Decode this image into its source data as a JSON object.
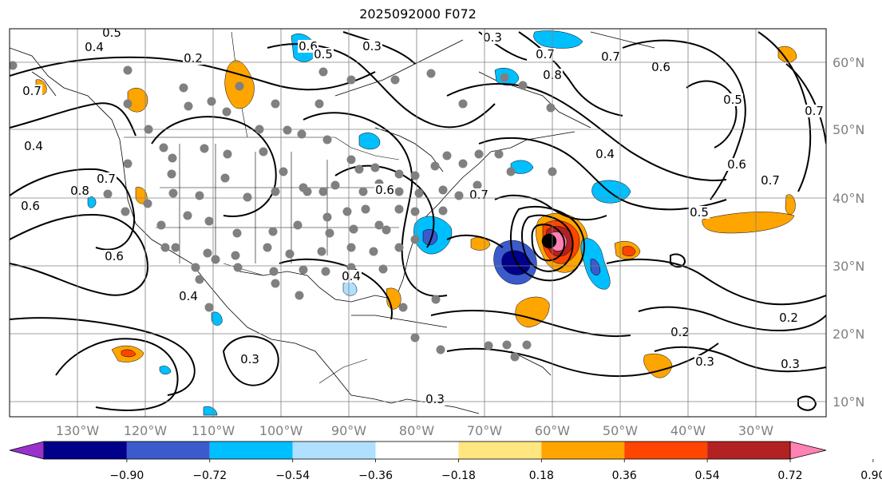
{
  "title": "2025092000 F072",
  "map": {
    "lon_range": [
      -140,
      -19
    ],
    "lat_range": [
      8,
      65
    ],
    "lon_labels": [
      "130°W",
      "120°W",
      "110°W",
      "100°W",
      "90°W",
      "80°W",
      "70°W",
      "60°W",
      "50°W",
      "40°W",
      "30°W"
    ],
    "lat_labels": [
      "60°N",
      "50°N",
      "40°N",
      "30°N",
      "20°N",
      "10°N"
    ],
    "contour_labels": [
      "0.5",
      "0.4",
      "0.2",
      "0.3",
      "0.6",
      "0.7",
      "0.4",
      "0.8",
      "0.7",
      "0.6",
      "0.6",
      "0.4",
      "0.3",
      "0.4",
      "0.3",
      "0.3",
      "0.7",
      "0.8",
      "0.7",
      "0.6",
      "0.5",
      "0.7",
      "0.4",
      "0.6",
      "0.7",
      "0.5",
      "0.2",
      "0.3",
      "0.2",
      "0.3",
      "0.7",
      "0.6",
      "0.5"
    ]
  },
  "colorbar": {
    "ticks": [
      "−0.90",
      "−0.72",
      "−0.54",
      "−0.36",
      "−0.18",
      "0.18",
      "0.36",
      "0.54",
      "0.72",
      "0.90"
    ],
    "colors": [
      "#9932cc",
      "#00008b",
      "#3b5bcc",
      "#00bfff",
      "#b0e0ff",
      "#ffffff",
      "#ffe680",
      "#ffa500",
      "#ff4500",
      "#b22222",
      "#ff82b4"
    ]
  }
}
